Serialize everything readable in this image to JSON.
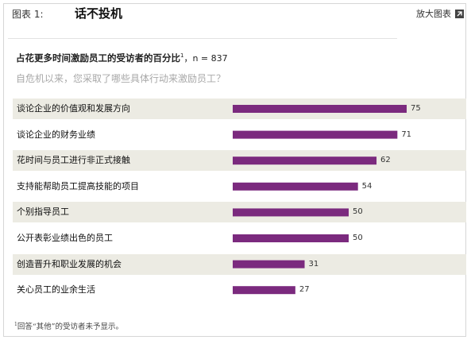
{
  "header": {
    "exhibit_label": "图表 1:",
    "title": "话不投机",
    "enlarge_label": "放大图表"
  },
  "subtitle": {
    "text": "占花更多时间激励员工的受访者的百分比",
    "footnote_mark": "1",
    "sample": "，n = 837"
  },
  "question": "自危机以来，您采取了哪些具体行动来激励员工？",
  "footnote": {
    "mark": "1",
    "text": "回答“其他”的受访者未予显示。"
  },
  "colors": {
    "bar": "#7b2a7e",
    "band": "#ecebe3"
  },
  "chart_data": {
    "type": "bar",
    "orientation": "horizontal",
    "categories": [
      "谈论企业的价值观和发展方向",
      "谈论企业的财务业绩",
      "花时间与员工进行非正式接触",
      "支持能帮助员工提高技能的项目",
      "个别指导员工",
      "公开表彰业绩出色的员工",
      "创造晋升和职业发展的机会",
      "关心员工的业余生活"
    ],
    "values": [
      75,
      71,
      62,
      54,
      50,
      50,
      31,
      27
    ],
    "value_labels": [
      "75",
      "71",
      "62",
      "54",
      "50",
      "50",
      "31",
      "27"
    ],
    "xlim": [
      0,
      100
    ],
    "grid": false,
    "legend": "none"
  }
}
